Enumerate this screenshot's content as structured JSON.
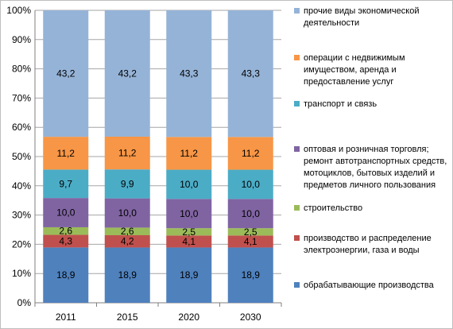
{
  "chart_data": {
    "type": "bar",
    "stacked": "percent",
    "categories": [
      "2011",
      "2015",
      "2020",
      "2030"
    ],
    "series": [
      {
        "name": "обрабатывающие производства",
        "color": "#4F81BD",
        "values": [
          18.9,
          18.9,
          18.9,
          18.9
        ],
        "labels": [
          "18,9",
          "18,9",
          "18,9",
          "18,9"
        ]
      },
      {
        "name": "производство и распределение электроэнергии, газа и воды",
        "color": "#C0504D",
        "values": [
          4.3,
          4.2,
          4.1,
          4.1
        ],
        "labels": [
          "4,3",
          "4,2",
          "4,1",
          "4,1"
        ]
      },
      {
        "name": "строительство",
        "color": "#9BBB59",
        "values": [
          2.6,
          2.6,
          2.5,
          2.5
        ],
        "labels": [
          "2,6",
          "2,6",
          "2,5",
          "2,5"
        ]
      },
      {
        "name": "оптовая и розничная торговля; ремонт автотранспортных средств, мотоциклов, бытовых изделий и предметов личного пользования",
        "color": "#8064A2",
        "values": [
          10.0,
          10.0,
          10.0,
          10.0
        ],
        "labels": [
          "10,0",
          "10,0",
          "10,0",
          "10,0"
        ]
      },
      {
        "name": "транспорт и связь",
        "color": "#4BACC6",
        "values": [
          9.7,
          9.9,
          10.0,
          10.0
        ],
        "labels": [
          "9,7",
          "9,9",
          "10,0",
          "10,0"
        ]
      },
      {
        "name": "операции с недвижимым имуществом, аренда и предоставление услуг",
        "color": "#F79646",
        "values": [
          11.2,
          11.2,
          11.2,
          11.2
        ],
        "labels": [
          "11,2",
          "11,2",
          "11,2",
          "11,2"
        ]
      },
      {
        "name": "прочие  виды экономической деятельности",
        "color": "#95B3D7",
        "values": [
          43.2,
          43.2,
          43.3,
          43.3
        ],
        "labels": [
          "43,2",
          "43,2",
          "43,3",
          "43,3"
        ]
      }
    ],
    "ylim": [
      0,
      100
    ],
    "yticks": [
      "0%",
      "10%",
      "20%",
      "30%",
      "40%",
      "50%",
      "60%",
      "70%",
      "80%",
      "90%",
      "100%"
    ],
    "grid": true,
    "legend_position": "right",
    "legend": [
      {
        "series_index": 6,
        "lines": [
          "прочие  виды экономической",
          "деятельности"
        ]
      },
      {
        "series_index": 5,
        "lines": [
          "операции с недвижимым",
          "имуществом, аренда и",
          "предоставление услуг"
        ]
      },
      {
        "series_index": 4,
        "lines": [
          "транспорт и связь"
        ]
      },
      {
        "series_index": 3,
        "lines": [
          "оптовая и розничная торговля;",
          "ремонт автотранспортных средств,",
          "мотоциклов, бытовых изделий и",
          "предметов личного пользования"
        ]
      },
      {
        "series_index": 2,
        "lines": [
          "строительство"
        ]
      },
      {
        "series_index": 1,
        "lines": [
          "производство и распределение",
          "электроэнергии, газа и воды"
        ]
      },
      {
        "series_index": 0,
        "lines": [
          "обрабатывающие производства"
        ]
      }
    ]
  }
}
